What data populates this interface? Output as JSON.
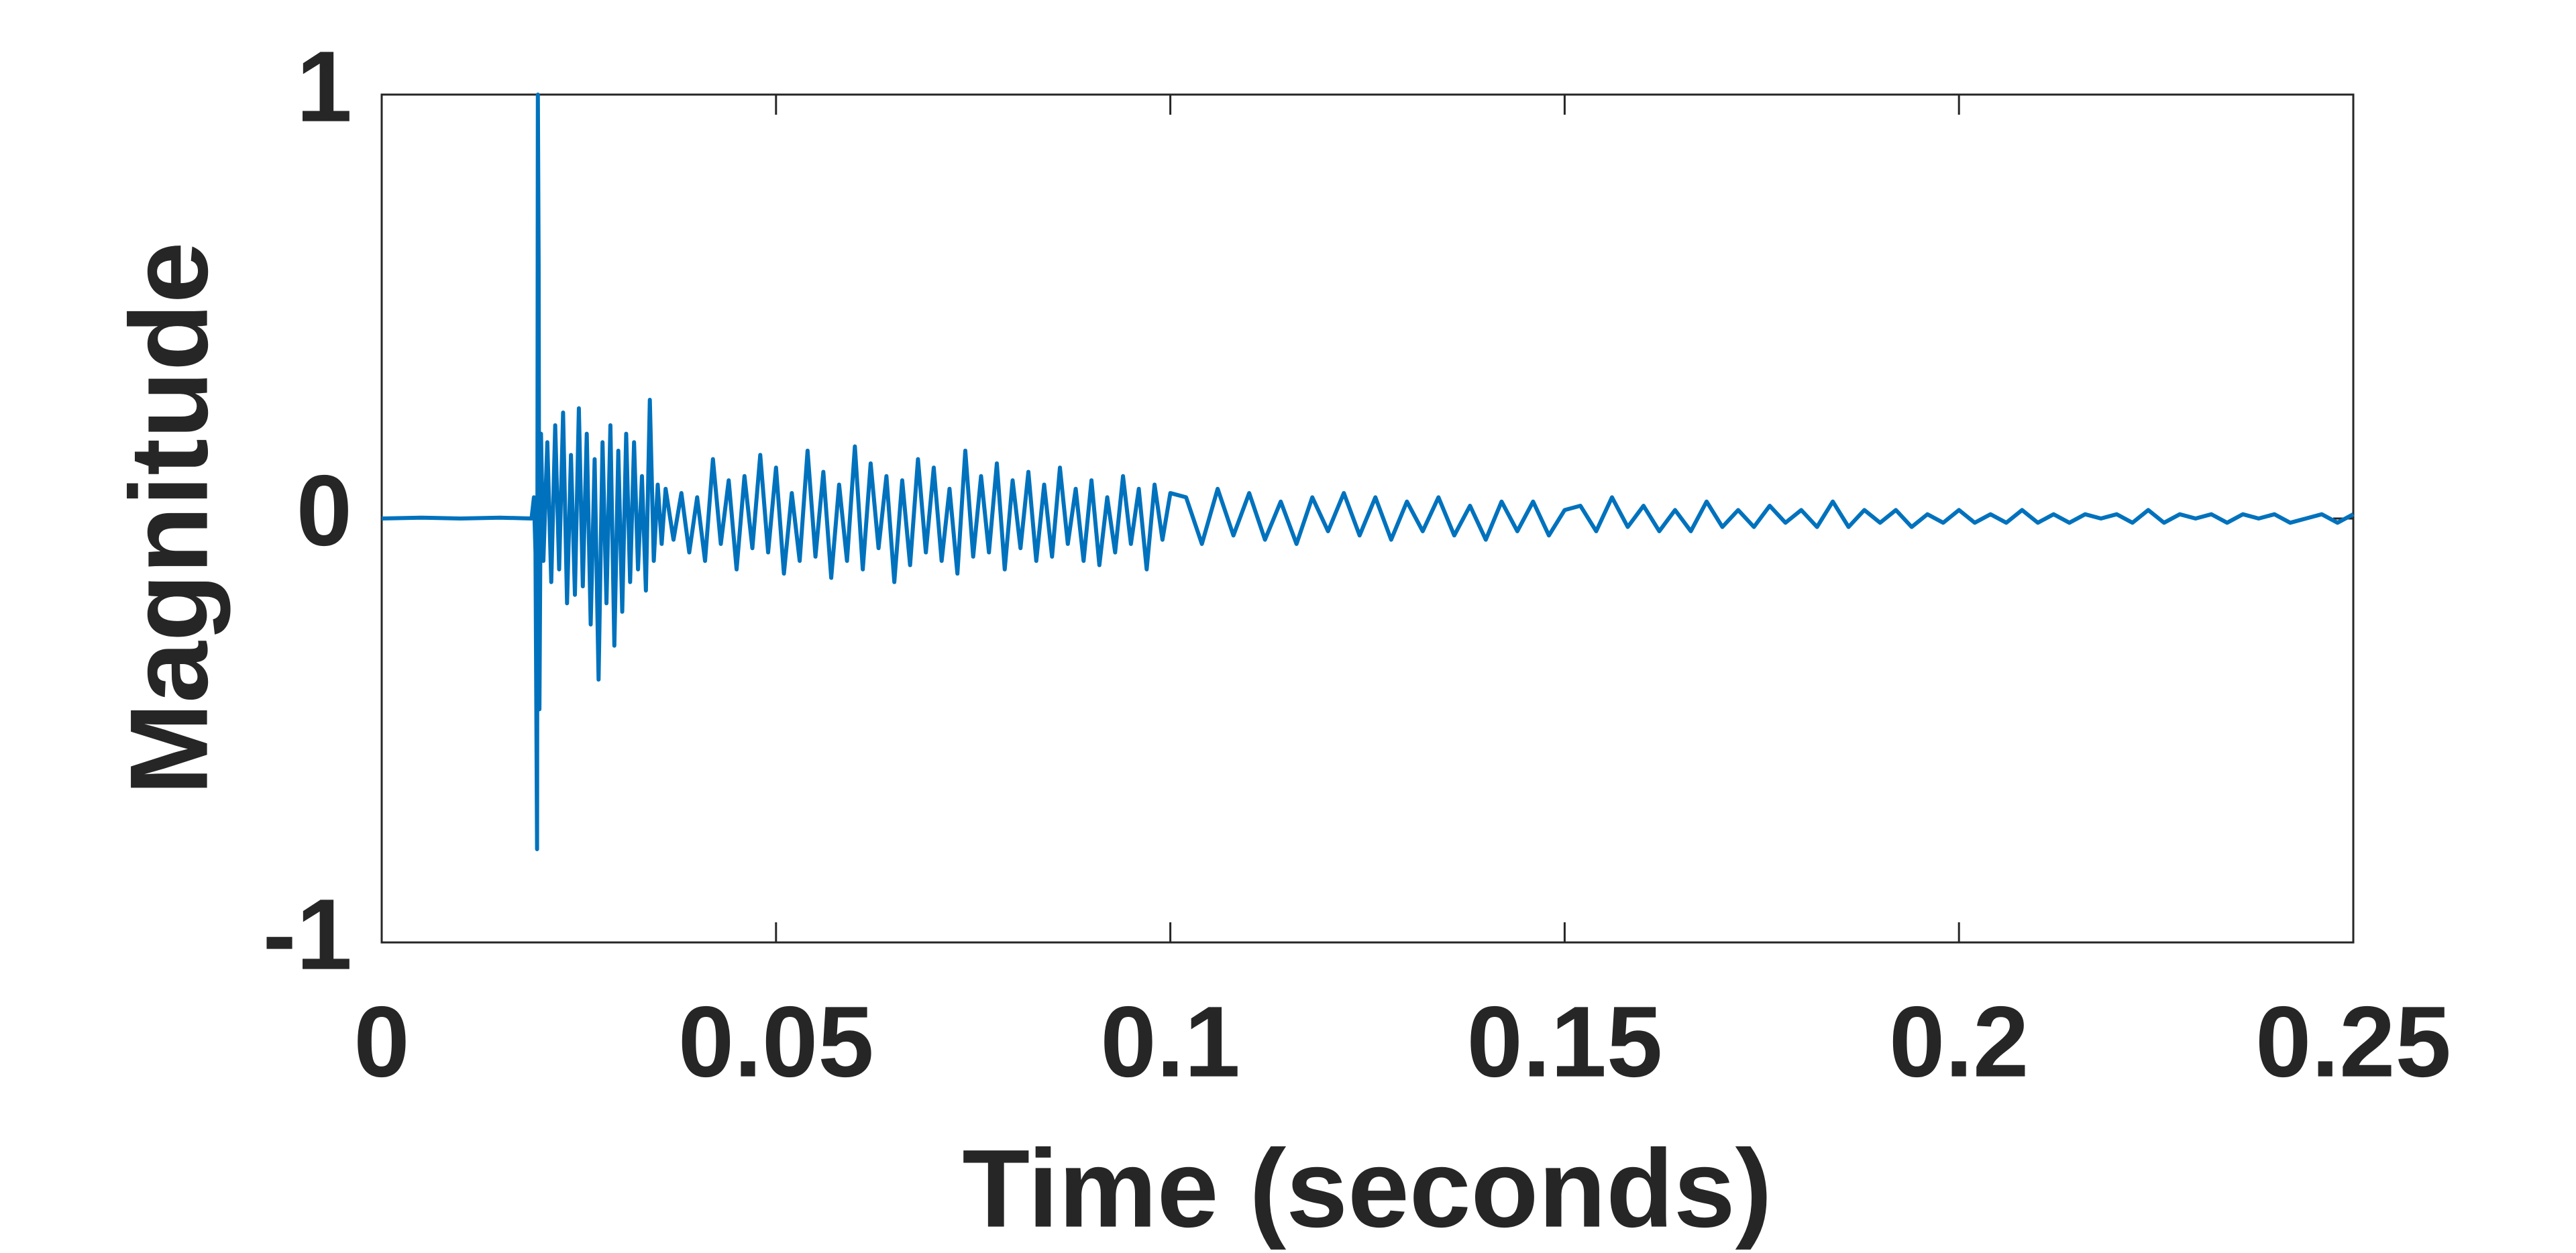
{
  "chart_data": {
    "type": "line",
    "x_label": "Time (seconds)",
    "y_label": "Magnitude",
    "xlim": [
      0,
      0.25
    ],
    "ylim": [
      -1,
      1
    ],
    "xticks": [
      0,
      0.05,
      0.1,
      0.15,
      0.2,
      0.25
    ],
    "yticks": [
      -1,
      0,
      1
    ],
    "grid": false,
    "x": [
      0,
      0.005,
      0.01,
      0.015,
      0.019,
      0.0193,
      0.0195,
      0.0197,
      0.0198,
      0.0199,
      0.02,
      0.0202,
      0.0205,
      0.021,
      0.0215,
      0.022,
      0.0225,
      0.023,
      0.0235,
      0.024,
      0.0245,
      0.025,
      0.0255,
      0.026,
      0.0265,
      0.027,
      0.0275,
      0.028,
      0.0285,
      0.029,
      0.0295,
      0.03,
      0.0305,
      0.031,
      0.0315,
      0.032,
      0.0325,
      0.033,
      0.0335,
      0.034,
      0.0345,
      0.035,
      0.0355,
      0.036,
      0.037,
      0.038,
      0.039,
      0.04,
      0.041,
      0.042,
      0.043,
      0.044,
      0.045,
      0.046,
      0.047,
      0.048,
      0.049,
      0.05,
      0.051,
      0.052,
      0.053,
      0.054,
      0.055,
      0.056,
      0.057,
      0.058,
      0.059,
      0.06,
      0.061,
      0.062,
      0.063,
      0.064,
      0.065,
      0.066,
      0.067,
      0.068,
      0.069,
      0.07,
      0.071,
      0.072,
      0.073,
      0.074,
      0.075,
      0.076,
      0.077,
      0.078,
      0.079,
      0.08,
      0.081,
      0.082,
      0.083,
      0.084,
      0.085,
      0.086,
      0.087,
      0.088,
      0.089,
      0.09,
      0.091,
      0.092,
      0.093,
      0.094,
      0.095,
      0.096,
      0.097,
      0.098,
      0.099,
      0.1,
      0.102,
      0.104,
      0.106,
      0.108,
      0.11,
      0.112,
      0.114,
      0.116,
      0.118,
      0.12,
      0.122,
      0.124,
      0.126,
      0.128,
      0.13,
      0.132,
      0.134,
      0.136,
      0.138,
      0.14,
      0.142,
      0.144,
      0.146,
      0.148,
      0.15,
      0.152,
      0.154,
      0.156,
      0.158,
      0.16,
      0.162,
      0.164,
      0.166,
      0.168,
      0.17,
      0.172,
      0.174,
      0.176,
      0.178,
      0.18,
      0.182,
      0.184,
      0.186,
      0.188,
      0.19,
      0.192,
      0.194,
      0.196,
      0.198,
      0.2,
      0.202,
      0.204,
      0.206,
      0.208,
      0.21,
      0.212,
      0.214,
      0.216,
      0.218,
      0.22,
      0.222,
      0.224,
      0.226,
      0.228,
      0.23,
      0.232,
      0.234,
      0.236,
      0.238,
      0.24,
      0.242,
      0.244,
      0.246,
      0.248,
      0.25
    ],
    "series": [
      {
        "color": "#0072bd",
        "values": [
          0,
          0.002,
          0,
          0.002,
          0,
          0.05,
          -0.08,
          -0.78,
          1,
          0.6,
          -0.45,
          0.2,
          -0.1,
          0.18,
          -0.15,
          0.22,
          -0.12,
          0.25,
          -0.2,
          0.15,
          -0.18,
          0.26,
          -0.16,
          0.2,
          -0.25,
          0.14,
          -0.38,
          0.18,
          -0.2,
          0.22,
          -0.3,
          0.16,
          -0.22,
          0.2,
          -0.15,
          0.18,
          -0.12,
          0.1,
          -0.17,
          0.28,
          -0.1,
          0.08,
          -0.06,
          0.07,
          -0.05,
          0.06,
          -0.08,
          0.05,
          -0.1,
          0.14,
          -0.06,
          0.09,
          -0.12,
          0.1,
          -0.07,
          0.15,
          -0.08,
          0.12,
          -0.13,
          0.06,
          -0.1,
          0.16,
          -0.09,
          0.11,
          -0.14,
          0.08,
          -0.1,
          0.17,
          -0.12,
          0.13,
          -0.07,
          0.1,
          -0.15,
          0.09,
          -0.11,
          0.14,
          -0.08,
          0.12,
          -0.1,
          0.07,
          -0.13,
          0.16,
          -0.09,
          0.1,
          -0.08,
          0.13,
          -0.12,
          0.09,
          -0.07,
          0.11,
          -0.1,
          0.08,
          -0.09,
          0.12,
          -0.06,
          0.07,
          -0.1,
          0.09,
          -0.11,
          0.05,
          -0.08,
          0.1,
          -0.06,
          0.07,
          -0.12,
          0.08,
          -0.05,
          0.06,
          0.05,
          -0.06,
          0.07,
          -0.04,
          0.06,
          -0.05,
          0.04,
          -0.06,
          0.05,
          -0.03,
          0.06,
          -0.04,
          0.05,
          -0.05,
          0.04,
          -0.03,
          0.05,
          -0.04,
          0.03,
          -0.05,
          0.04,
          -0.03,
          0.04,
          -0.04,
          0.02,
          0.03,
          -0.03,
          0.05,
          -0.02,
          0.03,
          -0.03,
          0.02,
          -0.03,
          0.04,
          -0.02,
          0.02,
          -0.02,
          0.03,
          -0.01,
          0.02,
          -0.02,
          0.04,
          -0.02,
          0.02,
          -0.01,
          0.02,
          -0.02,
          0.01,
          -0.01,
          0.02,
          -0.01,
          0.01,
          -0.01,
          0.02,
          -0.01,
          0.01,
          -0.01,
          0.01,
          0,
          0.01,
          -0.01,
          0.02,
          -0.01,
          0.01,
          0,
          0.01,
          -0.01,
          0.01,
          0,
          0.01,
          -0.01,
          0,
          0.01,
          -0.01,
          0.01
        ]
      }
    ]
  }
}
